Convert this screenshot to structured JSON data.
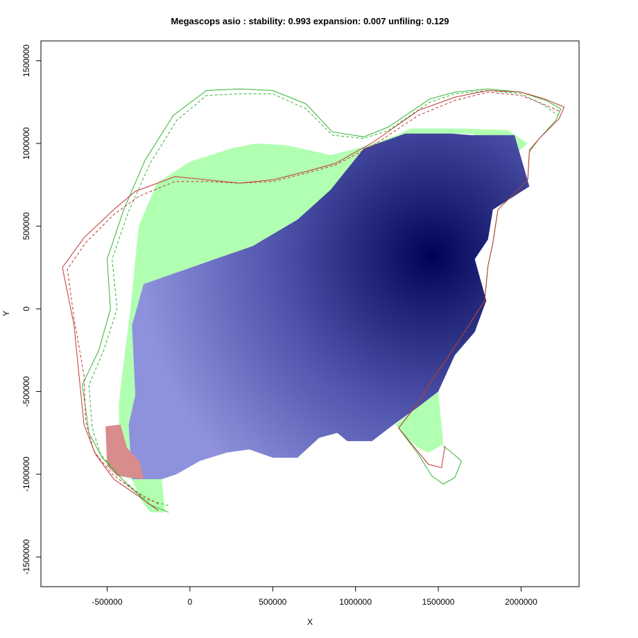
{
  "chart_data": {
    "type": "heatmap",
    "title": "Megascops asio : stability: 0.993 expansion: 0.007 unfiling: 0.129",
    "xlabel": "X",
    "ylabel": "Y",
    "xlim": [
      -900000,
      2350000
    ],
    "ylim": [
      -1680000,
      1620000
    ],
    "x_ticks": [
      -500000,
      0,
      500000,
      1000000,
      1500000,
      2000000
    ],
    "y_ticks": [
      -1500000,
      -1000000,
      -500000,
      0,
      500000,
      1000000,
      1500000
    ],
    "x_tick_labels": [
      "-500000",
      "0",
      "500000",
      "1000000",
      "1500000",
      "2000000"
    ],
    "y_tick_labels": [
      "-1500000",
      "-1000000",
      "-500000",
      "0",
      "500000",
      "1000000",
      "1500000"
    ],
    "grid": false,
    "colors": {
      "stability_low": "#8e92dc",
      "stability_high": "#000255",
      "expansion": "#d98c8c",
      "unfilling": "#b1ffb1",
      "outline_red": "#c13232",
      "outline_green": "#2fb52f"
    },
    "regions": {
      "stability": [
        [
          -350000,
          -1030000
        ],
        [
          -370000,
          -700000
        ],
        [
          -330000,
          -520000
        ],
        [
          -350000,
          -100000
        ],
        [
          -280000,
          150000
        ],
        [
          150000,
          300000
        ],
        [
          380000,
          380000
        ],
        [
          650000,
          540000
        ],
        [
          850000,
          720000
        ],
        [
          1050000,
          970000
        ],
        [
          1300000,
          1060000
        ],
        [
          1580000,
          1060000
        ],
        [
          1700000,
          1050000
        ],
        [
          1960000,
          1050000
        ],
        [
          2050000,
          740000
        ],
        [
          1830000,
          600000
        ],
        [
          1800000,
          420000
        ],
        [
          1720000,
          300000
        ],
        [
          1790000,
          50000
        ],
        [
          1720000,
          -140000
        ],
        [
          1600000,
          -280000
        ],
        [
          1500000,
          -500000
        ],
        [
          1370000,
          -600000
        ],
        [
          1230000,
          -700000
        ],
        [
          1100000,
          -800000
        ],
        [
          950000,
          -800000
        ],
        [
          890000,
          -750000
        ],
        [
          780000,
          -780000
        ],
        [
          650000,
          -900000
        ],
        [
          500000,
          -900000
        ],
        [
          360000,
          -850000
        ],
        [
          220000,
          -870000
        ],
        [
          60000,
          -920000
        ],
        [
          -80000,
          -1000000
        ],
        [
          -170000,
          -1030000
        ],
        [
          -350000,
          -1030000
        ]
      ],
      "unfilling": [
        [
          [
            -430000,
            -580000
          ],
          [
            -410000,
            -400000
          ],
          [
            -360000,
            -10000
          ],
          [
            -310000,
            500000
          ],
          [
            -200000,
            760000
          ],
          [
            0,
            890000
          ],
          [
            250000,
            970000
          ],
          [
            400000,
            1000000
          ],
          [
            580000,
            990000
          ],
          [
            850000,
            930000
          ],
          [
            1050000,
            980000
          ],
          [
            1250000,
            1050000
          ],
          [
            1330000,
            1090000
          ],
          [
            1630000,
            1090000
          ],
          [
            1920000,
            1080000
          ],
          [
            2040000,
            1000000
          ],
          [
            1970000,
            940000
          ],
          [
            1700000,
            1060000
          ],
          [
            1300000,
            1060000
          ],
          [
            1050000,
            970000
          ],
          [
            850000,
            720000
          ],
          [
            650000,
            540000
          ],
          [
            380000,
            380000
          ],
          [
            150000,
            300000
          ],
          [
            -280000,
            150000
          ],
          [
            -350000,
            -100000
          ],
          [
            -330000,
            -520000
          ],
          [
            -370000,
            -700000
          ],
          [
            -350000,
            -1030000
          ],
          [
            -420000,
            -1010000
          ],
          [
            -430000,
            -580000
          ]
        ],
        [
          [
            1370000,
            -600000
          ],
          [
            1500000,
            -500000
          ],
          [
            1530000,
            -820000
          ],
          [
            1440000,
            -870000
          ],
          [
            1380000,
            -840000
          ],
          [
            1300000,
            -770000
          ],
          [
            1240000,
            -700000
          ],
          [
            1370000,
            -600000
          ]
        ],
        [
          [
            -350000,
            -1030000
          ],
          [
            -170000,
            -1030000
          ],
          [
            -150000,
            -1230000
          ],
          [
            -240000,
            -1230000
          ],
          [
            -300000,
            -1150000
          ],
          [
            -350000,
            -1030000
          ]
        ]
      ],
      "expansion": [
        [
          -510000,
          -710000
        ],
        [
          -420000,
          -700000
        ],
        [
          -380000,
          -840000
        ],
        [
          -300000,
          -930000
        ],
        [
          -280000,
          -1030000
        ],
        [
          -440000,
          -1010000
        ],
        [
          -500000,
          -950000
        ],
        [
          -510000,
          -710000
        ]
      ]
    },
    "outlines": {
      "red_solid": [
        [
          -190000,
          -1220000
        ],
        [
          -300000,
          -1140000
        ],
        [
          -460000,
          -1030000
        ],
        [
          -570000,
          -880000
        ],
        [
          -640000,
          -700000
        ],
        [
          -670000,
          -400000
        ],
        [
          -700000,
          -100000
        ],
        [
          -770000,
          250000
        ],
        [
          -640000,
          430000
        ],
        [
          -460000,
          600000
        ],
        [
          -330000,
          710000
        ],
        [
          -90000,
          800000
        ],
        [
          100000,
          780000
        ],
        [
          300000,
          760000
        ],
        [
          500000,
          780000
        ],
        [
          700000,
          830000
        ],
        [
          880000,
          880000
        ],
        [
          1110000,
          1010000
        ],
        [
          1380000,
          1200000
        ],
        [
          1600000,
          1280000
        ],
        [
          1800000,
          1320000
        ],
        [
          2000000,
          1310000
        ],
        [
          2140000,
          1270000
        ],
        [
          2260000,
          1220000
        ],
        [
          2230000,
          1150000
        ],
        [
          2110000,
          1030000
        ],
        [
          2050000,
          960000
        ],
        [
          2040000,
          780000
        ],
        [
          1860000,
          600000
        ],
        [
          1830000,
          400000
        ],
        [
          1800000,
          260000
        ],
        [
          1780000,
          50000
        ],
        [
          1620000,
          -200000
        ],
        [
          1450000,
          -450000
        ],
        [
          1370000,
          -580000
        ],
        [
          1260000,
          -720000
        ],
        [
          1440000,
          -940000
        ],
        [
          1520000,
          -960000
        ],
        [
          1540000,
          -830000
        ]
      ],
      "red_dashed": [
        [
          -190000,
          -1180000
        ],
        [
          -320000,
          -1110000
        ],
        [
          -470000,
          -1000000
        ],
        [
          -580000,
          -860000
        ],
        [
          -630000,
          -680000
        ],
        [
          -640000,
          -400000
        ],
        [
          -700000,
          -60000
        ],
        [
          -740000,
          240000
        ],
        [
          -630000,
          400000
        ],
        [
          -460000,
          570000
        ],
        [
          -310000,
          680000
        ],
        [
          -90000,
          770000
        ],
        [
          100000,
          770000
        ],
        [
          300000,
          760000
        ],
        [
          500000,
          770000
        ],
        [
          700000,
          820000
        ],
        [
          880000,
          870000
        ],
        [
          1110000,
          990000
        ],
        [
          1380000,
          1170000
        ],
        [
          1600000,
          1260000
        ],
        [
          1800000,
          1310000
        ],
        [
          2000000,
          1290000
        ],
        [
          2130000,
          1240000
        ],
        [
          2240000,
          1190000
        ]
      ],
      "green_solid": [
        [
          -130000,
          -1230000
        ],
        [
          -250000,
          -1180000
        ],
        [
          -390000,
          -1050000
        ],
        [
          -530000,
          -900000
        ],
        [
          -610000,
          -750000
        ],
        [
          -650000,
          -460000
        ],
        [
          -550000,
          -250000
        ],
        [
          -480000,
          0
        ],
        [
          -500000,
          300000
        ],
        [
          -400000,
          600000
        ],
        [
          -270000,
          900000
        ],
        [
          -100000,
          1170000
        ],
        [
          100000,
          1320000
        ],
        [
          300000,
          1330000
        ],
        [
          500000,
          1320000
        ],
        [
          700000,
          1240000
        ],
        [
          860000,
          1070000
        ],
        [
          1050000,
          1040000
        ],
        [
          1200000,
          1100000
        ],
        [
          1450000,
          1270000
        ],
        [
          1600000,
          1310000
        ],
        [
          1800000,
          1330000
        ],
        [
          2000000,
          1310000
        ],
        [
          2150000,
          1260000
        ],
        [
          2240000,
          1210000
        ],
        [
          2210000,
          1140000
        ],
        [
          2110000,
          1030000
        ],
        [
          2050000,
          950000
        ],
        [
          2040000,
          780000
        ],
        [
          1860000,
          600000
        ],
        [
          1830000,
          400000
        ],
        [
          1800000,
          260000
        ],
        [
          1780000,
          50000
        ],
        [
          1620000,
          -200000
        ],
        [
          1450000,
          -450000
        ],
        [
          1370000,
          -580000
        ],
        [
          1260000,
          -720000
        ],
        [
          1380000,
          -880000
        ],
        [
          1460000,
          -1010000
        ],
        [
          1530000,
          -1060000
        ],
        [
          1600000,
          -1020000
        ],
        [
          1640000,
          -920000
        ],
        [
          1570000,
          -860000
        ],
        [
          1530000,
          -830000
        ]
      ],
      "green_dashed": [
        [
          -130000,
          -1190000
        ],
        [
          -270000,
          -1150000
        ],
        [
          -410000,
          -1030000
        ],
        [
          -540000,
          -880000
        ],
        [
          -590000,
          -720000
        ],
        [
          -610000,
          -460000
        ],
        [
          -520000,
          -250000
        ],
        [
          -440000,
          0
        ],
        [
          -470000,
          300000
        ],
        [
          -370000,
          590000
        ],
        [
          -240000,
          880000
        ],
        [
          -80000,
          1140000
        ],
        [
          100000,
          1290000
        ],
        [
          300000,
          1300000
        ],
        [
          500000,
          1300000
        ],
        [
          700000,
          1210000
        ],
        [
          860000,
          1050000
        ],
        [
          1050000,
          1030000
        ],
        [
          1200000,
          1080000
        ],
        [
          1450000,
          1250000
        ],
        [
          1600000,
          1300000
        ],
        [
          1800000,
          1320000
        ],
        [
          2000000,
          1300000
        ],
        [
          2140000,
          1230000
        ],
        [
          2220000,
          1170000
        ]
      ]
    },
    "hotspot": {
      "center": [
        1460000,
        320000
      ]
    }
  }
}
